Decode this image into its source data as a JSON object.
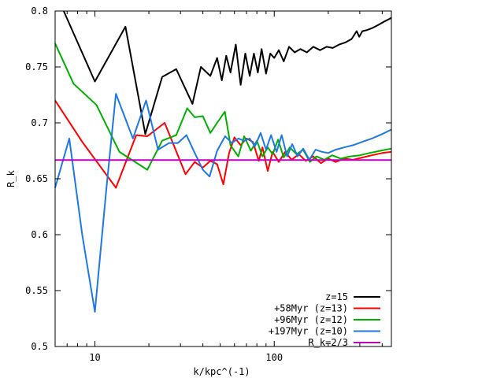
{
  "chart_data": {
    "type": "line",
    "xlabel": "k/kpc^(-1)",
    "ylabel": "R_k",
    "x_scale": "log",
    "xlim": [
      6,
      450
    ],
    "ylim": [
      0.5,
      0.8
    ],
    "xticks": [
      {
        "value": 10,
        "label": "10"
      },
      {
        "value": 100,
        "label": "100"
      }
    ],
    "yticks": [
      {
        "value": 0.5,
        "label": "0.5"
      },
      {
        "value": 0.55,
        "label": "0.55"
      },
      {
        "value": 0.6,
        "label": "0.6"
      },
      {
        "value": 0.65,
        "label": "0.65"
      },
      {
        "value": 0.7,
        "label": "0.7"
      },
      {
        "value": 0.75,
        "label": "0.75"
      },
      {
        "value": 0.8,
        "label": "0.8"
      }
    ],
    "grid": false,
    "legend": "bottom-right",
    "series": [
      {
        "name": "z=15",
        "color": "#000000",
        "points": [
          [
            6.7,
            0.8
          ],
          [
            10,
            0.737
          ],
          [
            14.8,
            0.786
          ],
          [
            19.1,
            0.69
          ],
          [
            23.7,
            0.741
          ],
          [
            28.4,
            0.748
          ],
          [
            35,
            0.717
          ],
          [
            39,
            0.75
          ],
          [
            44,
            0.742
          ],
          [
            48,
            0.758
          ],
          [
            51,
            0.738
          ],
          [
            54,
            0.76
          ],
          [
            57,
            0.745
          ],
          [
            61,
            0.77
          ],
          [
            65,
            0.734
          ],
          [
            69,
            0.762
          ],
          [
            73,
            0.742
          ],
          [
            77,
            0.762
          ],
          [
            81,
            0.745
          ],
          [
            85,
            0.766
          ],
          [
            90,
            0.744
          ],
          [
            95,
            0.762
          ],
          [
            100,
            0.758
          ],
          [
            106,
            0.765
          ],
          [
            113,
            0.755
          ],
          [
            121,
            0.768
          ],
          [
            130,
            0.763
          ],
          [
            140,
            0.766
          ],
          [
            152,
            0.763
          ],
          [
            165,
            0.768
          ],
          [
            180,
            0.765
          ],
          [
            196,
            0.768
          ],
          [
            212,
            0.767
          ],
          [
            230,
            0.77
          ],
          [
            250,
            0.772
          ],
          [
            270,
            0.775
          ],
          [
            288,
            0.782
          ],
          [
            298,
            0.777
          ],
          [
            310,
            0.782
          ],
          [
            330,
            0.783
          ],
          [
            355,
            0.785
          ],
          [
            385,
            0.788
          ],
          [
            415,
            0.791
          ],
          [
            440,
            0.793
          ],
          [
            450,
            0.794
          ]
        ]
      },
      {
        "name": "+58Myr (z=13)",
        "color": "#ff0000",
        "points": [
          [
            6,
            0.72
          ],
          [
            8.5,
            0.683
          ],
          [
            13.1,
            0.642
          ],
          [
            17,
            0.689
          ],
          [
            19.6,
            0.688
          ],
          [
            24.5,
            0.7
          ],
          [
            32,
            0.654
          ],
          [
            36,
            0.665
          ],
          [
            40,
            0.66
          ],
          [
            44,
            0.666
          ],
          [
            48,
            0.663
          ],
          [
            52,
            0.645
          ],
          [
            56,
            0.673
          ],
          [
            60,
            0.687
          ],
          [
            65,
            0.68
          ],
          [
            70,
            0.686
          ],
          [
            76,
            0.683
          ],
          [
            82,
            0.666
          ],
          [
            86,
            0.678
          ],
          [
            92,
            0.657
          ],
          [
            98,
            0.674
          ],
          [
            106,
            0.665
          ],
          [
            115,
            0.674
          ],
          [
            125,
            0.667
          ],
          [
            137,
            0.672
          ],
          [
            150,
            0.666
          ],
          [
            165,
            0.67
          ],
          [
            182,
            0.664
          ],
          [
            200,
            0.668
          ],
          [
            220,
            0.665
          ],
          [
            245,
            0.668
          ],
          [
            275,
            0.667
          ],
          [
            310,
            0.669
          ],
          [
            350,
            0.671
          ],
          [
            400,
            0.673
          ],
          [
            450,
            0.674
          ]
        ]
      },
      {
        "name": "+96Myr (z=12)",
        "color": "#00b000",
        "points": [
          [
            6,
            0.771
          ],
          [
            7.6,
            0.735
          ],
          [
            10.2,
            0.716
          ],
          [
            13.7,
            0.674
          ],
          [
            19.6,
            0.658
          ],
          [
            23.7,
            0.684
          ],
          [
            28.4,
            0.689
          ],
          [
            32.7,
            0.713
          ],
          [
            36,
            0.705
          ],
          [
            40,
            0.706
          ],
          [
            44,
            0.691
          ],
          [
            48,
            0.7
          ],
          [
            53,
            0.71
          ],
          [
            57,
            0.68
          ],
          [
            63,
            0.67
          ],
          [
            68,
            0.688
          ],
          [
            74,
            0.675
          ],
          [
            80,
            0.684
          ],
          [
            86,
            0.67
          ],
          [
            92,
            0.678
          ],
          [
            98,
            0.672
          ],
          [
            105,
            0.685
          ],
          [
            113,
            0.669
          ],
          [
            122,
            0.678
          ],
          [
            133,
            0.672
          ],
          [
            145,
            0.676
          ],
          [
            158,
            0.665
          ],
          [
            172,
            0.67
          ],
          [
            190,
            0.667
          ],
          [
            210,
            0.671
          ],
          [
            235,
            0.668
          ],
          [
            265,
            0.67
          ],
          [
            300,
            0.671
          ],
          [
            340,
            0.673
          ],
          [
            390,
            0.675
          ],
          [
            450,
            0.677
          ]
        ]
      },
      {
        "name": "+197Myr (z=10)",
        "color": "#1e78e6",
        "points": [
          [
            6,
            0.642
          ],
          [
            7.2,
            0.686
          ],
          [
            8.5,
            0.6
          ],
          [
            10,
            0.531
          ],
          [
            11.6,
            0.642
          ],
          [
            13.1,
            0.726
          ],
          [
            16.3,
            0.686
          ],
          [
            19.3,
            0.72
          ],
          [
            22.5,
            0.676
          ],
          [
            25.9,
            0.682
          ],
          [
            29,
            0.682
          ],
          [
            32.4,
            0.689
          ],
          [
            35.3,
            0.676
          ],
          [
            40,
            0.658
          ],
          [
            43.6,
            0.652
          ],
          [
            48,
            0.675
          ],
          [
            53.2,
            0.688
          ],
          [
            58,
            0.682
          ],
          [
            63,
            0.686
          ],
          [
            68,
            0.684
          ],
          [
            73,
            0.686
          ],
          [
            78,
            0.679
          ],
          [
            84,
            0.691
          ],
          [
            90,
            0.676
          ],
          [
            96,
            0.689
          ],
          [
            103,
            0.674
          ],
          [
            110,
            0.689
          ],
          [
            118,
            0.67
          ],
          [
            126,
            0.681
          ],
          [
            135,
            0.67
          ],
          [
            145,
            0.677
          ],
          [
            157,
            0.667
          ],
          [
            170,
            0.676
          ],
          [
            185,
            0.674
          ],
          [
            200,
            0.673
          ],
          [
            220,
            0.676
          ],
          [
            245,
            0.678
          ],
          [
            275,
            0.68
          ],
          [
            310,
            0.683
          ],
          [
            350,
            0.686
          ],
          [
            400,
            0.69
          ],
          [
            450,
            0.694
          ]
        ]
      },
      {
        "name": "R_k=2/3",
        "color": "#c000c0",
        "points": [
          [
            6,
            0.6667
          ],
          [
            450,
            0.6667
          ]
        ]
      }
    ]
  }
}
